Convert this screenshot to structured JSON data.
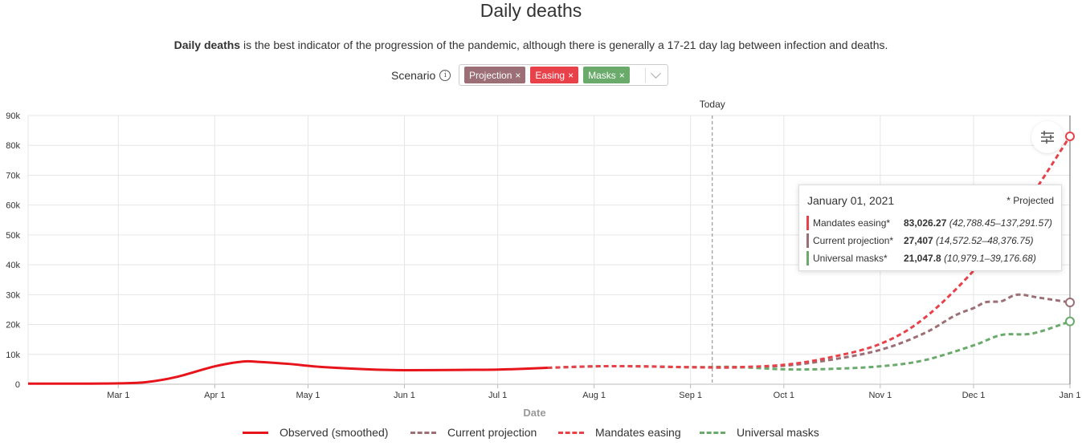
{
  "page": {
    "title": "Daily deaths",
    "subtitle_bold": "Daily deaths",
    "subtitle_rest": " is the best indicator of the progression of the pandemic, although there is generally a 17-21 day lag between infection and deaths.",
    "scenario_label": "Scenario",
    "info_icon_glyph": "i",
    "tags": [
      {
        "label": "Projection",
        "color": "#9b6f75"
      },
      {
        "label": "Easing",
        "color": "#e8414a"
      },
      {
        "label": "Masks",
        "color": "#6aab6b"
      }
    ],
    "tag_close": "×"
  },
  "tooltip": {
    "date": "January 01, 2021",
    "projected_note": "* Projected",
    "rows": [
      {
        "name": "Mandates easing*",
        "value": "83,026.27",
        "range": "(42,788.45–137,291.57)",
        "color": "#e8414a"
      },
      {
        "name": "Current projection*",
        "value": "27,407",
        "range": "(14,572.52–48,376.75)",
        "color": "#9b6f75"
      },
      {
        "name": "Universal masks*",
        "value": "21,047.8",
        "range": "(10,979.1–39,176.68)",
        "color": "#6aab6b"
      }
    ]
  },
  "chart_data": {
    "type": "line",
    "title": "",
    "xlabel": "Date",
    "ylabel": "",
    "ylim": [
      0,
      90000
    ],
    "yticks": [
      "0",
      "10k",
      "20k",
      "30k",
      "40k",
      "50k",
      "60k",
      "70k",
      "80k",
      "90k"
    ],
    "xticks": [
      "Mar 1",
      "Apr 1",
      "May 1",
      "Jun 1",
      "Jul 1",
      "Aug 1",
      "Sep 1",
      "Oct 1",
      "Nov 1",
      "Dec 1",
      "Jan 1"
    ],
    "today_label": "Today",
    "grid": true,
    "legend_position": "bottom",
    "series": [
      {
        "name": "Observed (smoothed)",
        "color": "#e8141b",
        "style": "solid",
        "x": [
          "2020-02-01",
          "2020-02-20",
          "2020-03-01",
          "2020-03-10",
          "2020-03-20",
          "2020-04-01",
          "2020-04-10",
          "2020-04-15",
          "2020-04-25",
          "2020-05-05",
          "2020-05-20",
          "2020-06-01",
          "2020-06-20",
          "2020-07-01",
          "2020-07-10",
          "2020-07-17"
        ],
        "y": [
          200,
          200,
          300,
          700,
          2500,
          6000,
          7600,
          7500,
          6800,
          5800,
          5000,
          4700,
          4800,
          4900,
          5200,
          5500
        ]
      },
      {
        "name": "Current projection",
        "color": "#9b6f75",
        "style": "dashed",
        "x": [
          "2020-07-17",
          "2020-08-01",
          "2020-08-15",
          "2020-09-01",
          "2020-09-15",
          "2020-10-01",
          "2020-10-15",
          "2020-11-01",
          "2020-11-15",
          "2020-11-25",
          "2020-12-01",
          "2020-12-05",
          "2020-12-10",
          "2020-12-15",
          "2020-12-22",
          "2021-01-01"
        ],
        "y": [
          5500,
          6000,
          6000,
          5700,
          5600,
          6200,
          8000,
          11500,
          17000,
          23000,
          25500,
          27500,
          27800,
          30000,
          29000,
          27407
        ]
      },
      {
        "name": "Mandates easing",
        "color": "#e8414a",
        "style": "dashed",
        "x": [
          "2020-07-17",
          "2020-08-01",
          "2020-08-15",
          "2020-09-01",
          "2020-09-15",
          "2020-10-01",
          "2020-10-15",
          "2020-11-01",
          "2020-11-15",
          "2020-12-01",
          "2020-12-15",
          "2021-01-01"
        ],
        "y": [
          5500,
          6000,
          6000,
          5700,
          5700,
          6500,
          8800,
          13500,
          22000,
          38000,
          56000,
          83026.27
        ]
      },
      {
        "name": "Universal masks",
        "color": "#6aab6b",
        "style": "dashed",
        "x": [
          "2020-07-17",
          "2020-08-01",
          "2020-08-15",
          "2020-09-01",
          "2020-09-15",
          "2020-10-01",
          "2020-10-15",
          "2020-11-01",
          "2020-11-15",
          "2020-12-01",
          "2020-12-10",
          "2020-12-20",
          "2021-01-01"
        ],
        "y": [
          5500,
          6000,
          6000,
          5700,
          5800,
          5000,
          5100,
          6000,
          8000,
          13000,
          16500,
          17000,
          21047.8
        ]
      }
    ]
  }
}
